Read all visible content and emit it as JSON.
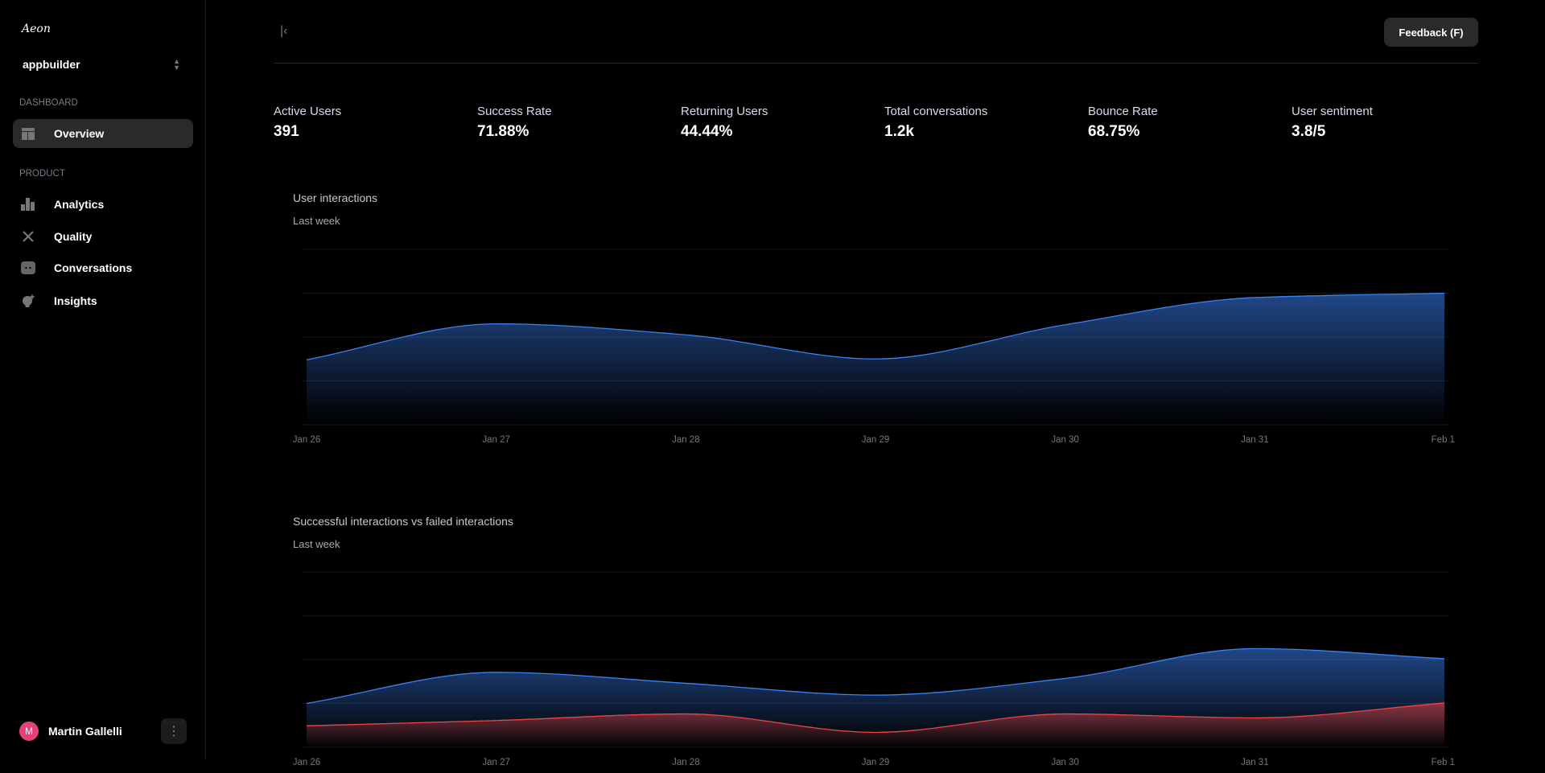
{
  "sidebar": {
    "logo": "Aeon",
    "workspace": "appbuilder",
    "sections": [
      {
        "label": "DASHBOARD",
        "items": [
          {
            "label": "Overview",
            "icon": "layout-icon",
            "active": true
          }
        ]
      },
      {
        "label": "PRODUCT",
        "items": [
          {
            "label": "Analytics",
            "icon": "bar-chart-icon"
          },
          {
            "label": "Quality",
            "icon": "tools-icon"
          },
          {
            "label": "Conversations",
            "icon": "chat-icon"
          },
          {
            "label": "Insights",
            "icon": "lightbulb-sparkle-icon"
          }
        ]
      }
    ],
    "user": {
      "initial": "M",
      "name": "Martin Gallelli",
      "avatar_color": "#e5407a"
    }
  },
  "header": {
    "collapse_icon": "collapse-sidebar-icon",
    "feedback_label": "Feedback (F)"
  },
  "stats": [
    {
      "label": "Active Users",
      "value": "391"
    },
    {
      "label": "Success Rate",
      "value": "71.88%"
    },
    {
      "label": "Returning Users",
      "value": "44.44%"
    },
    {
      "label": "Total conversations",
      "value": "1.2k"
    },
    {
      "label": "Bounce Rate",
      "value": "68.75%"
    },
    {
      "label": "User sentiment",
      "value": "3.8/5"
    }
  ],
  "chart_data": [
    {
      "type": "area",
      "title": "User interactions",
      "subtitle": "Last week",
      "x": [
        "Jan 26",
        "Jan 27",
        "Jan 28",
        "Jan 29",
        "Jan 30",
        "Jan 31",
        "Feb 1"
      ],
      "ylim": [
        0,
        4
      ],
      "grid": true,
      "series": [
        {
          "values": [
            1.48,
            2.3,
            2.05,
            1.5,
            2.28,
            2.9,
            3.0
          ],
          "color": "#3b82f6"
        }
      ]
    },
    {
      "type": "area",
      "title": "Successful interactions vs failed interactions",
      "subtitle": "Last week",
      "x": [
        "Jan 26",
        "Jan 27",
        "Jan 28",
        "Jan 29",
        "Jan 30",
        "Jan 31",
        "Feb 1"
      ],
      "ylim": [
        0,
        4
      ],
      "grid": true,
      "series": [
        {
          "values": [
            1.0,
            1.71,
            1.46,
            1.19,
            1.57,
            2.25,
            2.02
          ],
          "color": "#3b82f6"
        },
        {
          "values": [
            0.49,
            0.61,
            0.76,
            0.34,
            0.76,
            0.67,
            1.01
          ],
          "color": "#ef4444"
        }
      ]
    }
  ]
}
